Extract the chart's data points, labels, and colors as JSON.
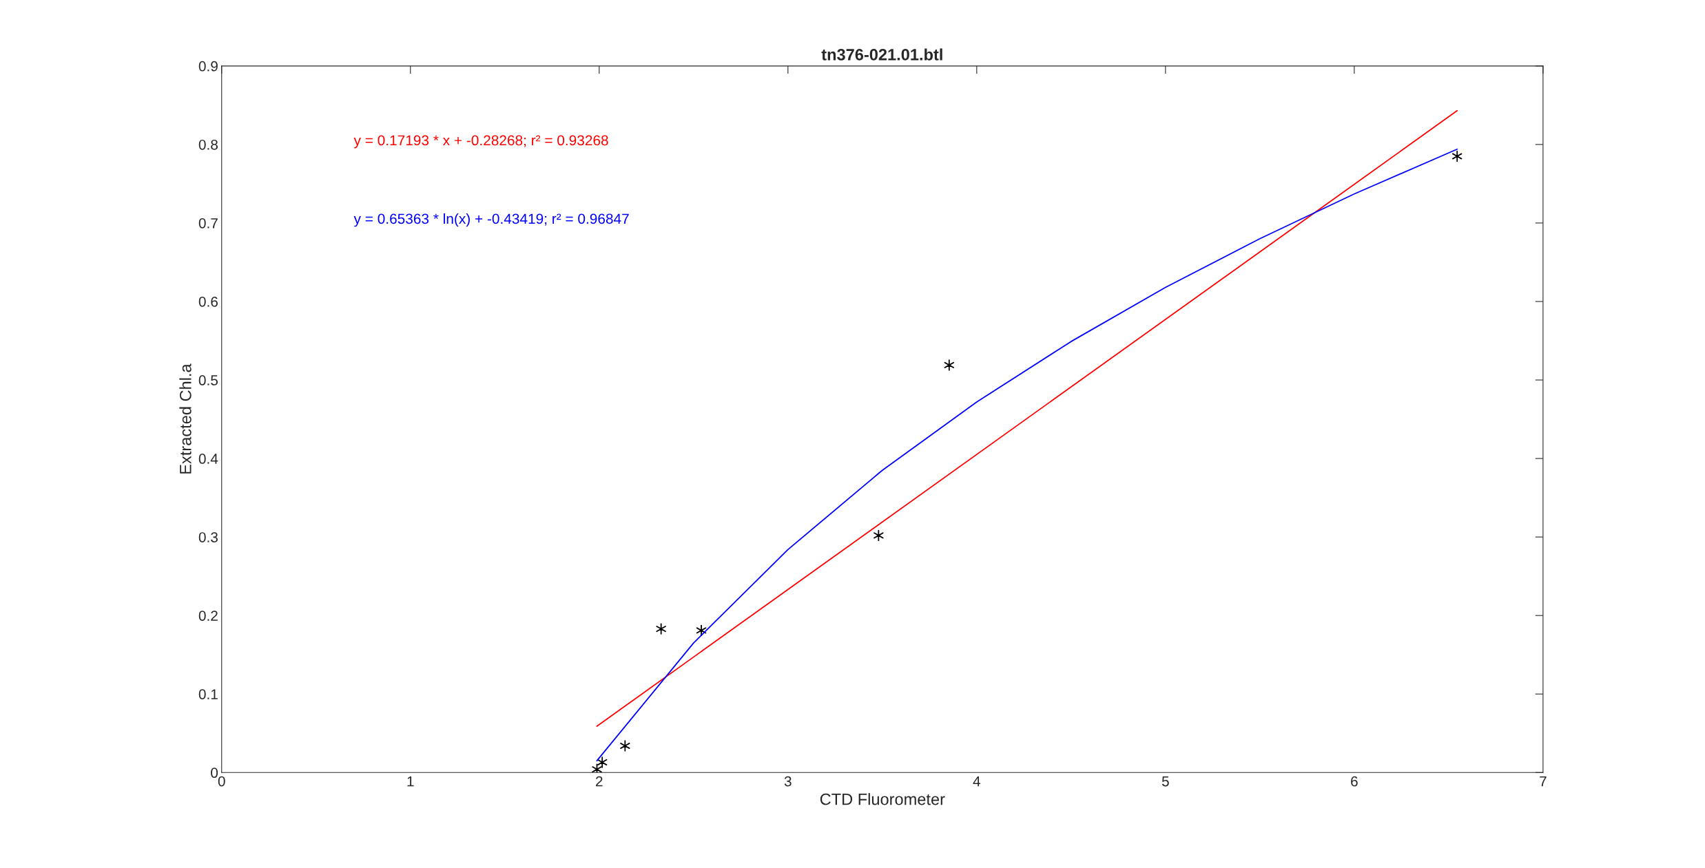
{
  "chart_data": {
    "type": "scatter",
    "title": "tn376-021.01.btl",
    "xlabel": "CTD Fluorometer",
    "ylabel": "Extracted Chl.a",
    "xlim": [
      0,
      7
    ],
    "xticks": [
      0,
      1,
      2,
      3,
      4,
      5,
      6,
      7
    ],
    "ylim": [
      0,
      0.9
    ],
    "yticks": [
      0,
      0.1,
      0.2,
      0.3,
      0.4,
      0.5,
      0.6,
      0.7,
      0.8,
      0.9
    ],
    "grid": false,
    "marker": "cross",
    "series": [
      {
        "color": "#000000",
        "x": [
          1.988,
          2.016,
          2.137,
          2.328,
          2.541,
          3.48,
          3.854,
          6.545
        ],
        "values": [
          0.004,
          0.013,
          0.034,
          0.183,
          0.181,
          0.302,
          0.519,
          0.785
        ]
      },
      {
        "type": "line",
        "color": "#ff0000",
        "marker": "none",
        "x": [
          1.988,
          6.545
        ],
        "values": [
          0.059,
          0.843
        ]
      },
      {
        "type": "line",
        "color": "#0000ff",
        "marker": "none",
        "x": [
          1.988,
          2.5,
          3,
          3.5,
          4,
          4.5,
          5,
          5.5,
          6,
          6.545
        ],
        "values": [
          0.015,
          0.165,
          0.284,
          0.385,
          0.472,
          0.549,
          0.618,
          0.68,
          0.737,
          0.794
        ]
      }
    ],
    "annotations": [
      "y = 0.17193 * x + -0.28268; r² = 0.93268",
      "y = 0.65363 * ln(x) + -0.43419; r² = 0.96847"
    ]
  }
}
